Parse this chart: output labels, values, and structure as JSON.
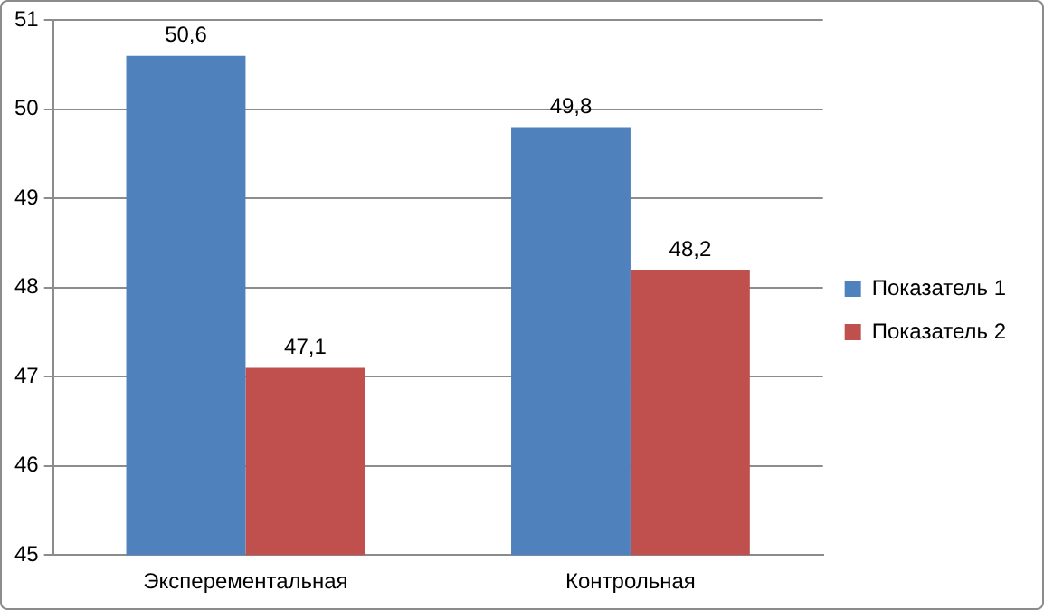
{
  "chart_data": {
    "type": "bar",
    "categories": [
      "Эксперементальная",
      "Контрольная"
    ],
    "series": [
      {
        "name": "Показатель 1",
        "color": "#4f81bd",
        "values": [
          50.6,
          49.8
        ],
        "value_labels": [
          "50,6",
          "49,8"
        ]
      },
      {
        "name": "Показатель 2",
        "color": "#c0504d",
        "values": [
          47.1,
          48.2
        ],
        "value_labels": [
          "47,1",
          "48,2"
        ]
      }
    ],
    "ylim": [
      45,
      51
    ],
    "yticks": [
      45,
      46,
      47,
      48,
      49,
      50,
      51
    ],
    "grid": "y",
    "legend": "right"
  }
}
